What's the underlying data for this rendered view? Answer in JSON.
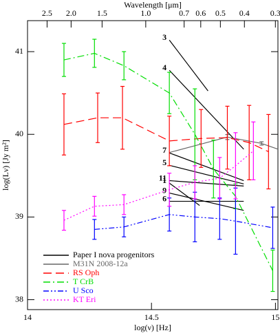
{
  "chart_data": {
    "type": "line",
    "xlabel": "log(ν) [Hz]",
    "ylabel": "log(Lν) [Jy m²]",
    "x2label": "Wavelength [μm]",
    "xlim": [
      14,
      15.01
    ],
    "ylim": [
      37.88,
      41.375
    ],
    "xticks": [
      14,
      14.5,
      15
    ],
    "yticks": [
      38,
      39,
      40,
      41
    ],
    "x2ticks": [
      2.5,
      {
        "value": 2,
        "label": "2.0"
      },
      1.5,
      {
        "value": 1,
        "label": "1.0"
      },
      0.7,
      0.6,
      0.5,
      0.4,
      0.3
    ],
    "legend": "lower left",
    "series": [
      {
        "name": "Paper I nova progenitors",
        "color": "#000000",
        "linestyle": "solid",
        "segments": [
          {
            "label": "3",
            "x": [
              14.572,
              14.728
            ],
            "values": [
              41.14,
              40.525
            ]
          },
          {
            "label": "4",
            "x": [
              14.572,
              14.872
            ],
            "values": [
              40.775,
              39.82
            ]
          },
          {
            "label": "7",
            "x": [
              14.572,
              14.872
            ],
            "values": [
              39.775,
              39.44
            ]
          },
          {
            "label": "5",
            "x": [
              14.572,
              14.872
            ],
            "values": [
              39.625,
              39.4
            ]
          },
          {
            "label": "11",
            "x": [
              14.572,
              14.872
            ],
            "values": [
              39.44,
              39.375
            ]
          },
          {
            "label": "1",
            "x": [
              14.572,
              14.694
            ],
            "values": [
              39.41,
              39.14
            ]
          },
          {
            "label": "9",
            "x": [
              14.572,
              14.872
            ],
            "values": [
              39.29,
              39.08
            ]
          },
          {
            "label": "6",
            "x": [
              14.572,
              14.872
            ],
            "values": [
              39.19,
              39.19
            ]
          }
        ]
      },
      {
        "name": "M31N 2008-12a",
        "color": "#666666",
        "linestyle": "solid",
        "x": [
          14.572,
          14.806,
          14.944,
          15.01
        ],
        "values": [
          39.78,
          39.967,
          39.89,
          39.82
        ],
        "errors": [
          null,
          0.03,
          0.02,
          null
        ]
      },
      {
        "name": "RS Oph",
        "color": "#ff0000",
        "linestyle": "dashed",
        "x": [
          14.147,
          14.283,
          14.383,
          14.572,
          14.7,
          14.806,
          14.894,
          14.972
        ],
        "values": [
          40.12,
          40.2,
          40.2,
          39.92,
          39.95,
          39.96,
          39.9,
          39.79
        ],
        "errors": [
          0.37,
          0.3,
          0.38,
          0.3,
          0.35,
          0.38,
          0.45,
          0.45
        ]
      },
      {
        "name": "T CrB",
        "color": "#00dd00",
        "linestyle": "dashdot",
        "x": [
          14.147,
          14.27,
          14.389,
          14.572,
          14.675,
          14.75,
          14.839,
          14.989
        ],
        "values": [
          40.9,
          40.98,
          40.83,
          40.5,
          40.0,
          39.58,
          39.25,
          38.35
        ],
        "errors": [
          0.2,
          0.17,
          0.17,
          0.25,
          0.55,
          0.35,
          0.15,
          0.25
        ]
      },
      {
        "name": "U Sco",
        "color": "#0000ff",
        "linestyle": "dashdotdot",
        "x": [
          14.27,
          14.389,
          14.572,
          14.675,
          14.775,
          14.839,
          14.989
        ],
        "values": [
          38.85,
          38.88,
          39.03,
          39.0,
          38.98,
          38.95,
          38.87
        ],
        "errors": [
          0.12,
          0.12,
          0.2,
          0.3,
          0.25,
          0.4,
          0.25
        ]
      },
      {
        "name": "KT Eri",
        "color": "#ff00ff",
        "linestyle": "dotted",
        "x": [
          14.147,
          14.27,
          14.389,
          14.572,
          14.675,
          14.775,
          14.839,
          14.911
        ],
        "values": [
          38.96,
          39.13,
          39.15,
          39.33,
          39.42,
          39.47,
          39.62,
          39.8
        ],
        "errors": [
          0.12,
          0.12,
          0.12,
          0.2,
          0.2,
          0.25,
          0.4,
          0.35
        ]
      }
    ]
  }
}
